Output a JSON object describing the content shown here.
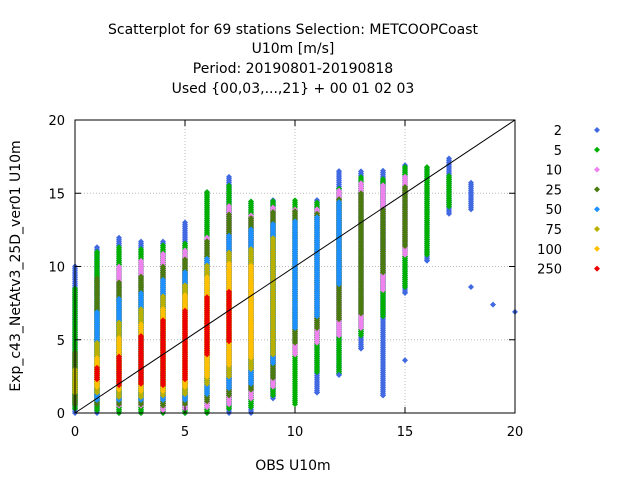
{
  "chart_data": {
    "type": "scatter",
    "title_lines": [
      "Scatterplot for   69 stations Selection: METCOOPCoast",
      "U10m [m/s]",
      "Period: 20190801-20190818",
      "Used {00,03,...,21} + 00 01 02 03"
    ],
    "xlabel": "OBS U10m",
    "ylabel": "Exp_c43_NetAtv3_25D_ver01 U10m",
    "xlim": [
      0,
      20
    ],
    "ylim": [
      0,
      20
    ],
    "xticks": [
      "0",
      "5",
      "10",
      "15",
      "20"
    ],
    "yticks": [
      "0",
      "5",
      "10",
      "15",
      "20"
    ],
    "grid": true,
    "diagonal": true,
    "legend_position": "right",
    "legend": [
      {
        "label": "2",
        "color": "#4169e1"
      },
      {
        "label": "5",
        "color": "#00b000"
      },
      {
        "label": "10",
        "color": "#ee82ee"
      },
      {
        "label": "25",
        "color": "#4a7a10"
      },
      {
        "label": "50",
        "color": "#1e90ff"
      },
      {
        "label": "75",
        "color": "#b8b000"
      },
      {
        "label": "100",
        "color": "#ffc000"
      },
      {
        "label": "250",
        "color": "#ee0000"
      }
    ],
    "columns": [
      {
        "x": 0,
        "bands": [
          [
            0,
            10.1,
            "2"
          ],
          [
            0.3,
            8.5,
            "5"
          ],
          [
            0.6,
            4.2,
            "25"
          ],
          [
            1.4,
            3.0,
            "75"
          ]
        ]
      },
      {
        "x": 1,
        "bands": [
          [
            0,
            11.4,
            "2"
          ],
          [
            0.2,
            11.0,
            "5"
          ],
          [
            0.6,
            9.2,
            "25"
          ],
          [
            0.9,
            7.0,
            "50"
          ],
          [
            1.4,
            4.8,
            "75"
          ],
          [
            1.8,
            3.8,
            "100"
          ],
          [
            2.3,
            3.1,
            "250"
          ]
        ]
      },
      {
        "x": 2,
        "bands": [
          [
            0,
            12.0,
            "2"
          ],
          [
            0,
            11.4,
            "5"
          ],
          [
            0.5,
            10.0,
            "10"
          ],
          [
            0.6,
            9.0,
            "25"
          ],
          [
            0.9,
            7.8,
            "50"
          ],
          [
            1.1,
            6.2,
            "75"
          ],
          [
            1.6,
            5.2,
            "100"
          ],
          [
            1.9,
            3.9,
            "250"
          ]
        ]
      },
      {
        "x": 3,
        "bands": [
          [
            0,
            11.8,
            "2"
          ],
          [
            0,
            11.2,
            "5"
          ],
          [
            0.5,
            10.5,
            "10"
          ],
          [
            0.6,
            9.4,
            "25"
          ],
          [
            0.9,
            8.2,
            "50"
          ],
          [
            1.1,
            7.1,
            "75"
          ],
          [
            1.5,
            6.1,
            "100"
          ],
          [
            2.0,
            5.3,
            "250"
          ]
        ]
      },
      {
        "x": 4,
        "bands": [
          [
            0,
            11.8,
            "2"
          ],
          [
            0,
            11.5,
            "5"
          ],
          [
            0.2,
            10.9,
            "10"
          ],
          [
            0.5,
            10.0,
            "25"
          ],
          [
            0.9,
            9.1,
            "50"
          ],
          [
            1.2,
            8.0,
            "75"
          ],
          [
            1.5,
            7.2,
            "100"
          ],
          [
            1.9,
            6.4,
            "250"
          ]
        ]
      },
      {
        "x": 5,
        "bands": [
          [
            0,
            13.0,
            "2"
          ],
          [
            0,
            11.6,
            "5"
          ],
          [
            0.3,
            11.1,
            "10"
          ],
          [
            0.6,
            10.5,
            "25"
          ],
          [
            0.9,
            9.7,
            "50"
          ],
          [
            1.3,
            8.8,
            "75"
          ],
          [
            1.8,
            8.1,
            "100"
          ],
          [
            2.3,
            7.0,
            "250"
          ]
        ]
      },
      {
        "x": 6,
        "bands": [
          [
            0,
            15.2,
            "2"
          ],
          [
            0,
            15.1,
            "5"
          ],
          [
            0.4,
            12.0,
            "10"
          ],
          [
            0.8,
            11.8,
            "25"
          ],
          [
            1.3,
            10.6,
            "50"
          ],
          [
            2.0,
            10.1,
            "75"
          ],
          [
            2.5,
            9.3,
            "100"
          ],
          [
            4.0,
            8.0,
            "250"
          ]
        ]
      },
      {
        "x": 7,
        "bands": [
          [
            0,
            16.2,
            "2"
          ],
          [
            0.3,
            15.6,
            "5"
          ],
          [
            0.6,
            14.2,
            "10"
          ],
          [
            1.2,
            13.6,
            "25"
          ],
          [
            1.7,
            12.2,
            "50"
          ],
          [
            2.5,
            11.0,
            "75"
          ],
          [
            3.3,
            10.2,
            "100"
          ],
          [
            4.9,
            8.4,
            "250"
          ]
        ]
      },
      {
        "x": 8,
        "bands": [
          [
            0,
            14.5,
            "2"
          ],
          [
            0.4,
            14.5,
            "5"
          ],
          [
            1.0,
            13.6,
            "10"
          ],
          [
            1.6,
            13.4,
            "25"
          ],
          [
            2.0,
            12.6,
            "50"
          ],
          [
            3.0,
            11.2,
            "75"
          ],
          [
            3.8,
            10.1,
            "100"
          ]
        ]
      },
      {
        "x": 9,
        "bands": [
          [
            1.0,
            14.6,
            "2"
          ],
          [
            1.2,
            14.5,
            "5"
          ],
          [
            1.8,
            14.1,
            "10"
          ],
          [
            2.4,
            13.8,
            "25"
          ],
          [
            3.4,
            13.0,
            "50"
          ],
          [
            4.0,
            12.0,
            "75"
          ]
        ]
      },
      {
        "x": 10,
        "bands": [
          [
            0.6,
            14.6,
            "5"
          ],
          [
            4.0,
            14.0,
            "10"
          ],
          [
            4.8,
            13.8,
            "25"
          ],
          [
            5.8,
            13.2,
            "50"
          ]
        ]
      },
      {
        "x": 11,
        "bands": [
          [
            1.4,
            14.6,
            "2"
          ],
          [
            2.8,
            14.4,
            "5"
          ],
          [
            4.8,
            14.0,
            "10"
          ],
          [
            5.8,
            13.6,
            "25"
          ],
          [
            6.6,
            13.4,
            "50"
          ]
        ]
      },
      {
        "x": 12,
        "bands": [
          [
            2.6,
            16.6,
            "2"
          ],
          [
            2.7,
            15.4,
            "5"
          ],
          [
            5.3,
            15.2,
            "10"
          ],
          [
            6.4,
            14.7,
            "25"
          ],
          [
            8.8,
            14.4,
            "50"
          ]
        ]
      },
      {
        "x": 13,
        "bands": [
          [
            4.4,
            16.6,
            "2"
          ],
          [
            5.3,
            16.1,
            "5"
          ],
          [
            5.8,
            15.8,
            "10"
          ],
          [
            6.8,
            15.0,
            "25"
          ]
        ]
      },
      {
        "x": 14,
        "bands": [
          [
            1.2,
            16.6,
            "2"
          ],
          [
            6.6,
            16.0,
            "5"
          ],
          [
            8.4,
            15.6,
            "10"
          ],
          [
            9.6,
            14.0,
            "25"
          ]
        ]
      },
      {
        "x": 15,
        "bands": [
          [
            8.2,
            17.0,
            "2"
          ],
          [
            8.6,
            16.8,
            "5"
          ],
          [
            10.8,
            16.2,
            "10"
          ],
          [
            11.4,
            15.5,
            "25"
          ]
        ]
      },
      {
        "x": 16,
        "bands": [
          [
            10.4,
            16.8,
            "2"
          ],
          [
            10.8,
            16.8,
            "5"
          ]
        ]
      },
      {
        "x": 17,
        "bands": [
          [
            13.6,
            17.4,
            "2"
          ],
          [
            14.1,
            16.2,
            "5"
          ]
        ]
      },
      {
        "x": 18,
        "bands": [
          [
            13.9,
            15.8,
            "2"
          ]
        ]
      }
    ],
    "extra_points": [
      [
        18,
        8.6,
        "2"
      ],
      [
        19,
        7.4,
        "2"
      ],
      [
        20,
        6.9,
        "2"
      ],
      [
        14,
        1.2,
        "2"
      ],
      [
        15,
        3.6,
        "2"
      ],
      [
        11,
        1.4,
        "2"
      ],
      [
        12,
        2.6,
        "2"
      ],
      [
        13,
        4.4,
        "2"
      ],
      [
        16,
        10.4,
        "2"
      ],
      [
        15,
        8.2,
        "2"
      ]
    ]
  }
}
